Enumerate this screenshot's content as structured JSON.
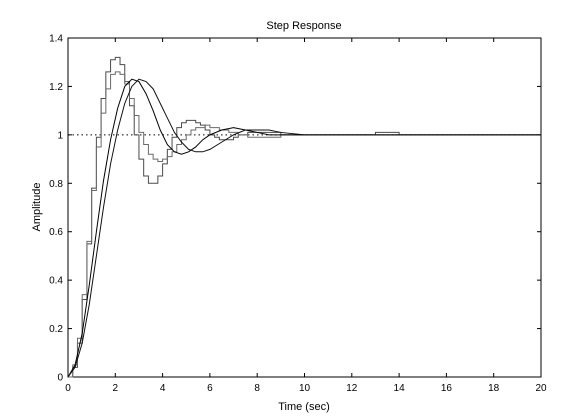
{
  "chart_data": {
    "type": "line",
    "title": "Step Response",
    "xlabel": "Time (sec)",
    "ylabel": "Amplitude",
    "xlim": [
      0,
      20
    ],
    "ylim": [
      0,
      1.4
    ],
    "xticks": [
      "0",
      "2",
      "4",
      "6",
      "8",
      "10",
      "12",
      "14",
      "16",
      "18",
      "20"
    ],
    "yticks": [
      "0",
      "0.2",
      "0.4",
      "0.6",
      "0.8",
      "1",
      "1.2",
      "1.4"
    ],
    "grid": false,
    "reference_line": {
      "y": 1.0,
      "style": "dotted"
    },
    "series": [
      {
        "style": "stairs",
        "x": [
          0,
          0.2,
          0.4,
          0.6,
          0.8,
          1.0,
          1.2,
          1.4,
          1.6,
          1.8,
          2.0,
          2.2,
          2.4,
          2.6,
          2.8,
          3.0,
          3.2,
          3.4,
          3.6,
          3.8,
          4.0,
          4.2,
          4.4,
          4.6,
          4.8,
          5.0,
          5.2,
          5.4,
          5.6,
          5.8,
          6.0,
          6.2,
          6.4,
          6.6,
          6.8,
          7.0,
          7.2,
          7.4,
          7.6,
          7.8,
          8.0,
          8.5,
          9.0,
          9.5,
          10.0,
          10.5,
          11.0,
          12.0,
          13.0,
          14.0,
          15.0,
          16.0,
          18.0,
          20.0
        ],
        "y": [
          0,
          0.04,
          0.14,
          0.32,
          0.55,
          0.78,
          0.99,
          1.15,
          1.26,
          1.31,
          1.32,
          1.29,
          1.22,
          1.12,
          1.0,
          0.9,
          0.83,
          0.8,
          0.8,
          0.83,
          0.88,
          0.94,
          0.99,
          1.03,
          1.05,
          1.06,
          1.06,
          1.05,
          1.04,
          1.02,
          1.0,
          0.99,
          0.98,
          0.98,
          0.98,
          0.99,
          1.0,
          1.0,
          1.01,
          1.01,
          1.01,
          1.01,
          1.0,
          1.0,
          1.0,
          1.0,
          1.0,
          1.0,
          1.01,
          1.0,
          1.0,
          1.0,
          1.0,
          1.0
        ]
      },
      {
        "style": "stairs",
        "x": [
          0,
          0.2,
          0.4,
          0.6,
          0.8,
          1.0,
          1.2,
          1.4,
          1.6,
          1.8,
          2.0,
          2.2,
          2.4,
          2.6,
          2.8,
          3.0,
          3.2,
          3.4,
          3.6,
          3.8,
          4.0,
          4.2,
          4.4,
          4.6,
          4.8,
          5.0,
          5.2,
          5.4,
          5.6,
          5.8,
          6.0,
          6.4,
          6.8,
          7.2,
          7.6,
          8.0,
          9.0,
          10.0,
          11.0,
          12.0,
          14.0,
          16.0,
          18.0,
          20.0
        ],
        "y": [
          0,
          0.05,
          0.16,
          0.34,
          0.56,
          0.77,
          0.95,
          1.09,
          1.19,
          1.25,
          1.26,
          1.25,
          1.21,
          1.15,
          1.08,
          1.01,
          0.96,
          0.92,
          0.9,
          0.89,
          0.9,
          0.91,
          0.93,
          0.96,
          0.98,
          1.0,
          1.02,
          1.03,
          1.03,
          1.04,
          1.03,
          1.02,
          1.01,
          1.0,
          0.99,
          0.99,
          1.0,
          1.0,
          1.0,
          1.0,
          1.0,
          1.0,
          1.0,
          1.0
        ]
      },
      {
        "style": "line",
        "x": [
          0,
          0.3,
          0.6,
          0.9,
          1.2,
          1.5,
          1.8,
          2.1,
          2.4,
          2.7,
          3.0,
          3.3,
          3.6,
          3.9,
          4.2,
          4.5,
          4.8,
          5.1,
          5.4,
          5.7,
          6.0,
          6.5,
          7.0,
          7.5,
          8.0,
          8.5,
          9.0,
          10.0,
          11.0,
          12.0,
          14.0,
          16.0,
          18.0,
          20.0
        ],
        "y": [
          0,
          0.05,
          0.18,
          0.38,
          0.6,
          0.81,
          0.98,
          1.11,
          1.2,
          1.23,
          1.22,
          1.17,
          1.1,
          1.02,
          0.96,
          0.93,
          0.92,
          0.93,
          0.95,
          0.98,
          1.0,
          1.02,
          1.03,
          1.02,
          1.01,
          1.0,
          1.0,
          1.0,
          1.0,
          1.0,
          1.0,
          1.0,
          1.0,
          1.0
        ]
      },
      {
        "style": "line",
        "x": [
          0,
          0.3,
          0.6,
          0.9,
          1.2,
          1.5,
          1.8,
          2.1,
          2.4,
          2.7,
          3.0,
          3.3,
          3.6,
          3.9,
          4.2,
          4.5,
          4.8,
          5.1,
          5.4,
          5.7,
          6.0,
          6.5,
          7.0,
          7.5,
          8.0,
          8.5,
          9.0,
          10.0,
          11.0,
          12.0,
          14.0,
          16.0,
          18.0,
          20.0
        ],
        "y": [
          0,
          0.04,
          0.14,
          0.3,
          0.5,
          0.7,
          0.88,
          1.02,
          1.13,
          1.2,
          1.23,
          1.22,
          1.19,
          1.13,
          1.07,
          1.01,
          0.97,
          0.94,
          0.93,
          0.93,
          0.94,
          0.97,
          1.0,
          1.02,
          1.02,
          1.02,
          1.01,
          1.0,
          1.0,
          1.0,
          1.0,
          1.0,
          1.0,
          1.0
        ]
      }
    ]
  }
}
